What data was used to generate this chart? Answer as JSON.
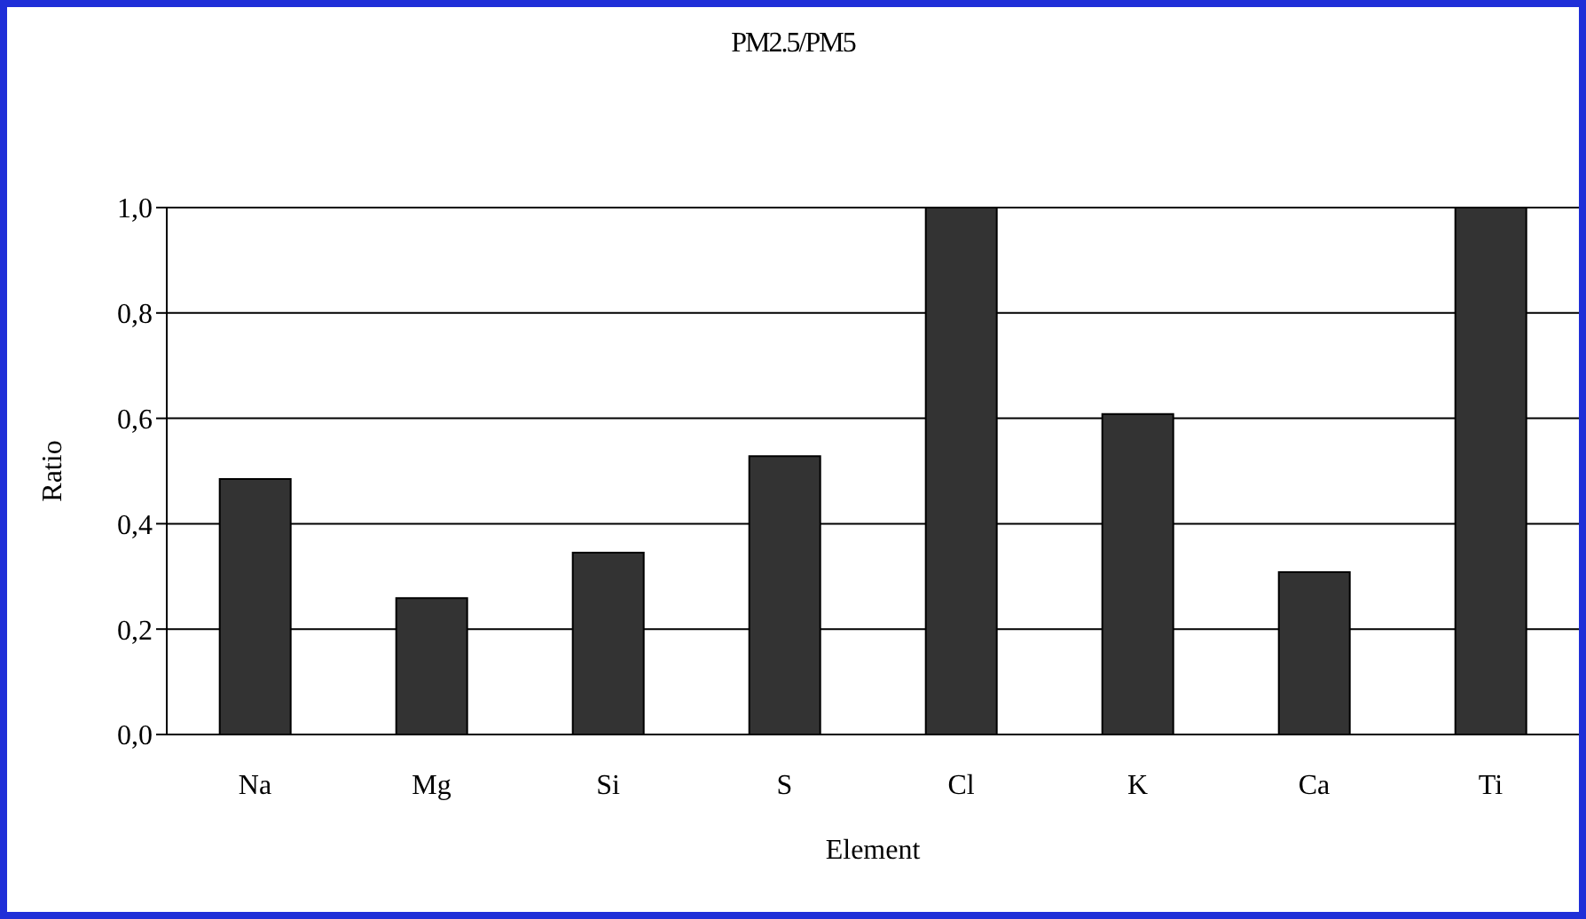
{
  "chart_data": {
    "type": "bar",
    "title": "PM2.5/PM5",
    "xlabel": "Element",
    "ylabel": "Ratio",
    "categories": [
      "Na",
      "Mg",
      "Si",
      "S",
      "Cl",
      "K",
      "Ca",
      "Ti"
    ],
    "values": [
      0.485,
      0.259,
      0.345,
      0.528,
      1.0,
      0.608,
      0.308,
      1.0
    ],
    "color": "#333333",
    "ylim": [
      0,
      1
    ],
    "yticks": [
      {
        "value": 0,
        "label": "0,0"
      },
      {
        "value": 0.2,
        "label": "0,2"
      },
      {
        "value": 0.4,
        "label": "0,4"
      },
      {
        "value": 0.6,
        "label": "0,6"
      },
      {
        "value": 0.8,
        "label": "0,8"
      },
      {
        "value": 1,
        "label": "1,0"
      }
    ],
    "grid": "y",
    "legend": false
  }
}
